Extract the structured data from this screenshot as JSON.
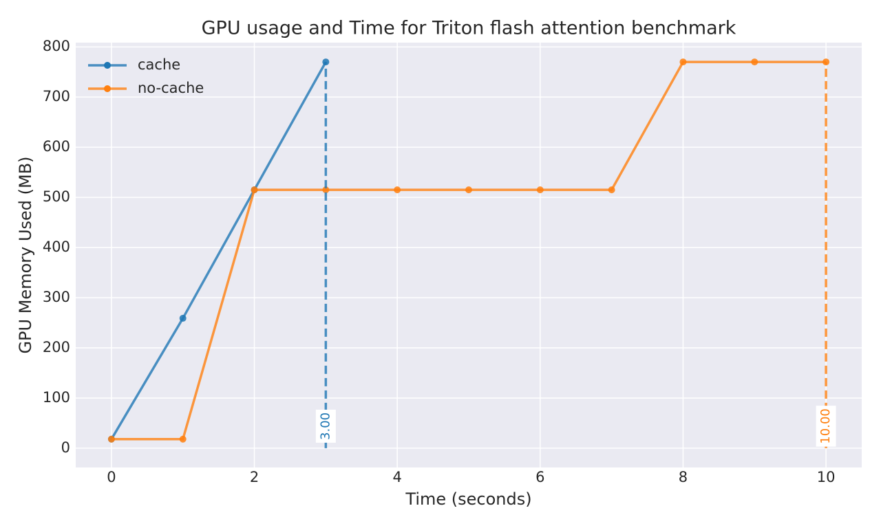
{
  "chart_data": {
    "type": "line",
    "title": "GPU usage and Time for Triton flash attention benchmark",
    "x_label": "Time (seconds)",
    "y_label": "GPU Memory Used (MB)",
    "series": [
      {
        "name": "cache",
        "color": "#1f77b4",
        "x": [
          0,
          1,
          2,
          3
        ],
        "values": [
          18,
          259,
          515,
          770
        ]
      },
      {
        "name": "no-cache",
        "color": "#ff7f0e",
        "x": [
          0,
          1,
          2,
          3,
          4,
          5,
          6,
          7,
          8,
          9,
          10
        ],
        "values": [
          18,
          18,
          515,
          515,
          515,
          515,
          515,
          515,
          770,
          770,
          770
        ]
      }
    ],
    "vlines": [
      {
        "x": 3,
        "y": [
          0,
          770
        ],
        "label": "3.00",
        "color": "#1f77b4"
      },
      {
        "x": 10,
        "y": [
          0,
          770
        ],
        "label": "10.00",
        "color": "#ff7f0e"
      }
    ],
    "xlim": [
      -0.5,
      10.5
    ],
    "xticks": [
      0,
      2,
      4,
      6,
      8,
      10
    ],
    "ylim": [
      -38.5,
      808.5
    ],
    "yticks": [
      0,
      100,
      200,
      300,
      400,
      500,
      600,
      700,
      800
    ],
    "grid": true,
    "legend": "upper left"
  }
}
